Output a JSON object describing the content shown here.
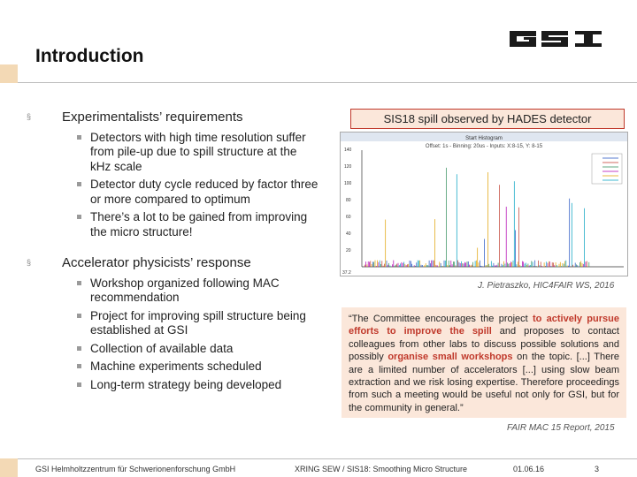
{
  "slide": {
    "title": "Introduction",
    "accent_color": "#f3d9b5",
    "highlight_color": "#c0392b"
  },
  "logo": {
    "text": "GSI",
    "icon": "gsi-logo-icon"
  },
  "bullets": [
    {
      "text": "Experimentalists’ requirements",
      "sub": [
        "Detectors with high time resolution suffer from pile-up due to spill structure at the kHz scale",
        "Detector duty cycle reduced by factor three or more compared to optimum",
        "There’s a lot to be gained from improving the micro structure!"
      ]
    },
    {
      "text": "Accelerator physicists’ response",
      "sub": [
        "Workshop organized following MAC recommendation",
        "Project for improving spill structure being established at GSI",
        "Collection of available data",
        "Machine experiments scheduled",
        "Long-term strategy being developed"
      ]
    }
  ],
  "histogram": {
    "caption": "SIS18 spill observed by HADES detector",
    "plot_title": "Start Histogram",
    "plot_subtitle": "Offset: 1s - Binning: 20us - Inputs: X:8-15, Y: 8-15",
    "corner_label": "37.2",
    "y_ticks": [
      "140",
      "120",
      "100",
      "80",
      "60",
      "40",
      "20"
    ],
    "credit": "J. Pietraszko, HIC4FAIR WS, 2016"
  },
  "quote": {
    "pre1": "“The Committee encourages the project ",
    "hl1": "to actively pursue efforts to improve the spill",
    "mid": " and proposes to contact colleagues from other labs to discuss possible solutions and possibly ",
    "hl2": "organise small workshops",
    "post": " on the topic. [...] There are a limited number of accelerators [...] using slow beam extraction and we risk losing expertise. Therefore proceedings from such a meeting would be useful not only for GSI, but for the community in general.”",
    "credit": "FAIR MAC 15 Report, 2015"
  },
  "footer": {
    "org": "GSI Helmholtzzentrum für Schwerionenforschung GmbH",
    "event": "XRING SEW / SIS18: Smoothing Micro Structure",
    "date": "01.06.16",
    "page": "3"
  }
}
